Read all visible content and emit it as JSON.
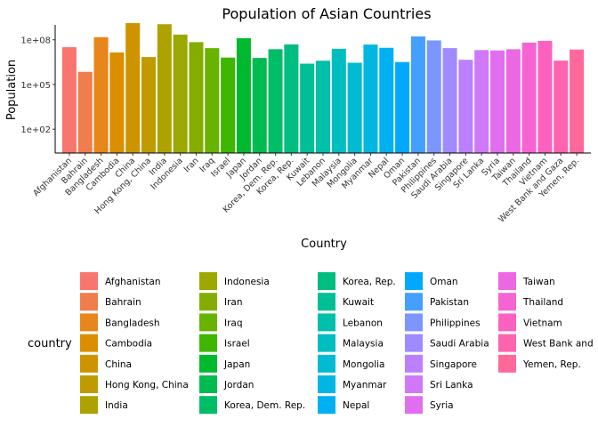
{
  "chart_data": {
    "type": "bar",
    "title": "Population of Asian Countries",
    "xlabel": "Country",
    "ylabel": "Population",
    "y_scale": "log10",
    "ylim": [
      2.5,
      1000000000
    ],
    "y_ticks": [
      {
        "value": 100,
        "label": "1e+02"
      },
      {
        "value": 100000,
        "label": "1e+05"
      },
      {
        "value": 100000000,
        "label": "1e+08"
      }
    ],
    "grid": false,
    "legend": {
      "title": "country",
      "placement": "bottom-left"
    },
    "categories": [
      "Afghanistan",
      "Bahrain",
      "Bangladesh",
      "Cambodia",
      "China",
      "Hong Kong, China",
      "India",
      "Indonesia",
      "Iran",
      "Iraq",
      "Israel",
      "Japan",
      "Jordan",
      "Korea, Dem. Rep.",
      "Korea, Rep.",
      "Kuwait",
      "Lebanon",
      "Malaysia",
      "Mongolia",
      "Myanmar",
      "Nepal",
      "Oman",
      "Pakistan",
      "Philippines",
      "Saudi Arabia",
      "Singapore",
      "Sri Lanka",
      "Syria",
      "Taiwan",
      "Thailand",
      "Vietnam",
      "West Bank and Gaza",
      "Yemen, Rep."
    ],
    "legend_labels": [
      "Afghanistan",
      "Bahrain",
      "Bangladesh",
      "Cambodia",
      "China",
      "Hong Kong, China",
      "India",
      "Indonesia",
      "Iran",
      "Iraq",
      "Israel",
      "Japan",
      "Jordan",
      "Korea, Dem. Rep.",
      "Korea, Rep.",
      "Kuwait",
      "Lebanon",
      "Malaysia",
      "Mongolia",
      "Myanmar",
      "Nepal",
      "Oman",
      "Pakistan",
      "Philippines",
      "Saudi Arabia",
      "Singapore",
      "Sri Lanka",
      "Syria",
      "Taiwan",
      "Thailand",
      "Vietnam",
      "West Bank and",
      "Yemen, Rep."
    ],
    "values": [
      31889923,
      708573,
      150448339,
      14131858,
      1318683096,
      6980412,
      1110396331,
      223547000,
      69453570,
      27499638,
      6426679,
      127467972,
      6053193,
      23301725,
      49044790,
      2505559,
      3921278,
      24821286,
      2874127,
      47761980,
      28901790,
      3204897,
      169270617,
      91077287,
      27601038,
      4553009,
      20378239,
      19314747,
      23174294,
      65068149,
      85262356,
      4018332,
      22211743
    ],
    "colors": [
      "#F8766D",
      "#F07E4C",
      "#E7861A",
      "#DB8E00",
      "#CE9400",
      "#BF9B00",
      "#AEA200",
      "#9BA800",
      "#84AD00",
      "#68B200",
      "#3FB600",
      "#00B92E",
      "#00BB4F",
      "#00BD68",
      "#00BE80",
      "#00BF96",
      "#00BFAB",
      "#00BEBF",
      "#00BBD1",
      "#00B7E2",
      "#00B1F1",
      "#00A9FD",
      "#449FFF",
      "#7D95FF",
      "#A08AFF",
      "#BA80FF",
      "#CF78FA",
      "#E06FF0",
      "#EC67E2",
      "#F564D2",
      "#FB62C0",
      "#FE64AD",
      "#FE6999"
    ]
  }
}
